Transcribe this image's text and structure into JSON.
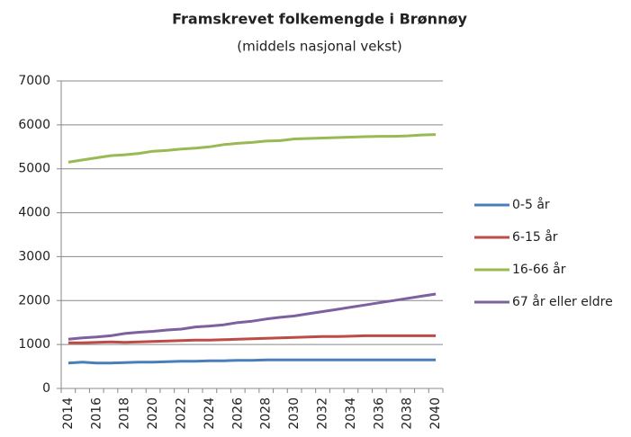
{
  "chart_data": {
    "type": "line",
    "title": "Framskrevet folkemengde i Brønnøy",
    "subtitle": "(middels nasjonal vekst)",
    "categories": [
      "2014",
      null,
      "2016",
      null,
      "2018",
      null,
      "2020",
      null,
      "2022",
      null,
      "2024",
      null,
      "2026",
      null,
      "2028",
      null,
      "2030",
      null,
      "2032",
      null,
      "2034",
      null,
      "2036",
      null,
      "2038",
      null,
      "2040"
    ],
    "series": [
      {
        "name": "0-5 år",
        "color": "#4a7ebb",
        "values": [
          580,
          600,
          580,
          580,
          590,
          600,
          600,
          610,
          620,
          620,
          630,
          630,
          640,
          640,
          650,
          650,
          650,
          650,
          650,
          650,
          650,
          650,
          650,
          650,
          650,
          650,
          650
        ]
      },
      {
        "name": "6-15 år",
        "color": "#be4b48",
        "values": [
          1040,
          1040,
          1050,
          1060,
          1050,
          1060,
          1070,
          1080,
          1090,
          1100,
          1100,
          1110,
          1120,
          1130,
          1140,
          1150,
          1160,
          1170,
          1180,
          1180,
          1190,
          1200,
          1200,
          1200,
          1200,
          1200,
          1200
        ]
      },
      {
        "name": "16-66 år",
        "color": "#98b954",
        "values": [
          5150,
          5200,
          5250,
          5300,
          5320,
          5350,
          5400,
          5420,
          5450,
          5470,
          5500,
          5550,
          5580,
          5600,
          5630,
          5640,
          5680,
          5690,
          5700,
          5710,
          5720,
          5730,
          5740,
          5740,
          5750,
          5770,
          5780
        ]
      },
      {
        "name": "67 år eller eldre",
        "color": "#7d60a0",
        "values": [
          1120,
          1150,
          1170,
          1200,
          1250,
          1280,
          1300,
          1330,
          1350,
          1400,
          1420,
          1450,
          1500,
          1530,
          1580,
          1620,
          1650,
          1700,
          1750,
          1800,
          1850,
          1900,
          1950,
          2000,
          2050,
          2100,
          2150
        ]
      }
    ],
    "ylim": [
      0,
      7000
    ],
    "yticks": [
      0,
      1000,
      2000,
      3000,
      4000,
      5000,
      6000,
      7000
    ],
    "grid": true,
    "legend": "right"
  }
}
